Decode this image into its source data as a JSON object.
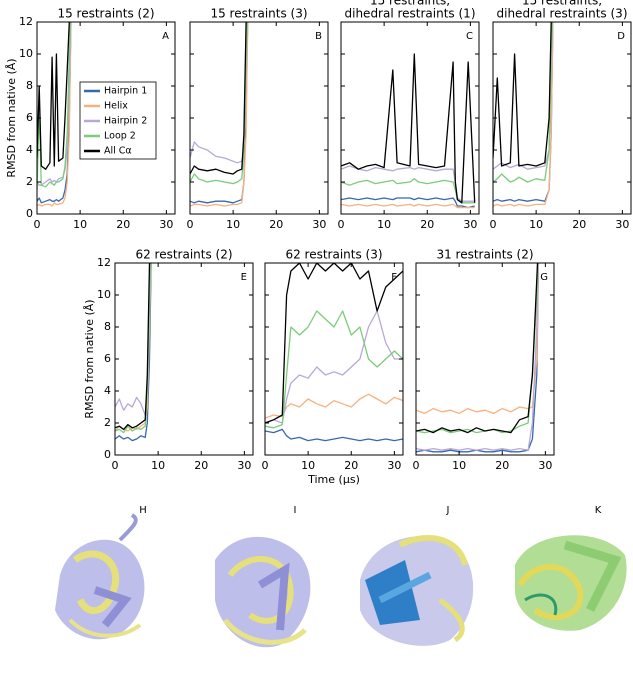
{
  "chart_data": [
    {
      "type": "line",
      "title": [
        "15 restraints (2)"
      ],
      "panel_label": "A",
      "ylabel": "RMSD from native (Å)",
      "x": [
        0,
        0.5,
        1,
        2,
        3,
        3.5,
        4,
        4.5,
        5,
        6,
        6.5,
        7,
        7.5,
        8
      ],
      "series": [
        {
          "name": "Hairpin 1",
          "color": "#3668b2",
          "values": [
            0.8,
            1.0,
            0.7,
            0.8,
            0.9,
            0.8,
            0.8,
            0.9,
            0.8,
            1.0,
            1.5,
            2.5,
            6,
            14
          ]
        },
        {
          "name": "Helix",
          "color": "#f7b17e",
          "values": [
            0.5,
            0.6,
            0.5,
            0.6,
            0.6,
            0.5,
            0.7,
            0.6,
            0.6,
            0.7,
            1.0,
            2.0,
            5,
            14
          ]
        },
        {
          "name": "Hairpin 2",
          "color": "#b7a8d8",
          "values": [
            2.0,
            1.8,
            1.8,
            2.0,
            2.2,
            2.0,
            2.1,
            2.0,
            2.2,
            2.3,
            2.8,
            4,
            8,
            14
          ]
        },
        {
          "name": "Loop 2",
          "color": "#7acb7a",
          "values": [
            1.5,
            6.5,
            1.8,
            1.7,
            2.0,
            1.9,
            1.8,
            2.0,
            2.0,
            2.2,
            3,
            5,
            10,
            14
          ]
        },
        {
          "name": "All Cα",
          "color": "#000000",
          "values": [
            3.5,
            8,
            3.0,
            2.8,
            3.2,
            9.8,
            3.0,
            10,
            3.3,
            3.5,
            6,
            9,
            12,
            14
          ]
        }
      ],
      "xlim": [
        0,
        32
      ],
      "xticks": [
        0,
        10,
        20,
        30
      ],
      "ylim": [
        0,
        12
      ],
      "yticks": [
        0,
        2,
        4,
        6,
        8,
        10,
        12
      ],
      "legend": "upper center"
    },
    {
      "type": "line",
      "title": [
        "15 restraints (3)"
      ],
      "panel_label": "B",
      "x": [
        0,
        1,
        2,
        4,
        6,
        8,
        10,
        11,
        12,
        12.5,
        13,
        13.5
      ],
      "series": [
        {
          "values": [
            0.8,
            0.7,
            0.8,
            0.7,
            0.8,
            0.8,
            0.7,
            0.8,
            0.9,
            2,
            6,
            14
          ]
        },
        {
          "values": [
            0.5,
            0.6,
            0.6,
            0.5,
            0.6,
            0.5,
            0.6,
            0.6,
            0.7,
            2,
            5,
            14
          ]
        },
        {
          "values": [
            3.5,
            4.5,
            4.2,
            4.0,
            3.6,
            3.5,
            3.3,
            3.2,
            3.3,
            4,
            9,
            14
          ]
        },
        {
          "values": [
            2.0,
            2.5,
            2.2,
            2.0,
            2.1,
            2.0,
            1.9,
            2.0,
            2.2,
            4,
            10,
            14
          ]
        },
        {
          "values": [
            2.5,
            3.0,
            2.8,
            2.7,
            2.8,
            2.6,
            2.5,
            2.7,
            2.8,
            5,
            12,
            14
          ]
        }
      ],
      "xlim": [
        0,
        32
      ],
      "xticks": [
        0,
        10,
        20,
        30
      ],
      "ylim": [
        0,
        12
      ],
      "yticks": [
        0,
        2,
        4,
        6,
        8,
        10,
        12
      ]
    },
    {
      "type": "line",
      "title": [
        "15 restraints,",
        "dihedral restraints (1)"
      ],
      "panel_label": "C",
      "x": [
        0,
        2,
        4,
        6,
        8,
        10,
        12,
        13,
        16,
        17,
        18,
        20,
        22,
        24,
        26,
        26.5,
        27,
        28,
        29.5,
        31
      ],
      "series": [
        {
          "values": [
            0.9,
            1.0,
            0.9,
            1.0,
            0.9,
            1.0,
            0.9,
            1.0,
            1.0,
            0.9,
            1.0,
            0.9,
            1.0,
            0.9,
            1.0,
            0.8,
            0.5,
            0.5,
            0.4,
            0.5
          ]
        },
        {
          "values": [
            0.6,
            0.5,
            0.6,
            0.5,
            0.6,
            0.5,
            0.6,
            0.5,
            0.6,
            0.5,
            0.6,
            0.5,
            0.6,
            0.5,
            0.6,
            0.5,
            0.4,
            0.4,
            0.4,
            0.4
          ]
        },
        {
          "values": [
            2.8,
            3.0,
            2.8,
            2.7,
            2.9,
            2.8,
            2.7,
            2.8,
            2.9,
            2.8,
            2.9,
            2.8,
            2.7,
            2.8,
            2.8,
            2.0,
            1.0,
            0.8,
            0.8,
            0.8
          ]
        },
        {
          "values": [
            2.0,
            1.8,
            2.0,
            2.1,
            1.9,
            2.0,
            2.1,
            1.9,
            2.0,
            2.2,
            2.0,
            1.9,
            2.0,
            2.1,
            2.0,
            1.5,
            0.9,
            0.7,
            0.7,
            0.7
          ]
        },
        {
          "values": [
            3.0,
            3.2,
            2.8,
            3.0,
            3.1,
            2.9,
            9.0,
            3.2,
            3.0,
            10.0,
            3.1,
            3.0,
            2.9,
            3.0,
            9.5,
            2.0,
            0.9,
            0.7,
            9.5,
            0.7
          ]
        }
      ],
      "xlim": [
        0,
        32
      ],
      "xticks": [
        0,
        10,
        20,
        30
      ],
      "ylim": [
        0,
        12
      ],
      "yticks": [
        0,
        2,
        4,
        6,
        8,
        10,
        12
      ]
    },
    {
      "type": "line",
      "title": [
        "15 restraints,",
        "dihedral restraints (3)"
      ],
      "panel_label": "D",
      "x": [
        0,
        1,
        2,
        4,
        5,
        6,
        8,
        10,
        12,
        13,
        13.5,
        14
      ],
      "series": [
        {
          "values": [
            0.8,
            0.9,
            0.8,
            0.9,
            0.8,
            0.9,
            0.8,
            0.9,
            0.8,
            1.5,
            5,
            14
          ]
        },
        {
          "values": [
            0.5,
            0.6,
            0.5,
            0.6,
            0.5,
            0.6,
            0.5,
            0.6,
            0.6,
            1.5,
            5,
            14
          ]
        },
        {
          "values": [
            2.8,
            3.0,
            3.2,
            2.9,
            3.0,
            3.1,
            2.8,
            2.9,
            3.0,
            4,
            9,
            14
          ]
        },
        {
          "values": [
            2.0,
            2.2,
            2.5,
            2.0,
            2.1,
            2.3,
            2.0,
            2.2,
            2.1,
            4,
            10,
            14
          ]
        },
        {
          "values": [
            3.5,
            8.5,
            3.0,
            3.2,
            10,
            3.0,
            3.1,
            3.0,
            3.2,
            6,
            12,
            14
          ]
        }
      ],
      "xlim": [
        0,
        32
      ],
      "xticks": [
        0,
        10,
        20,
        30
      ],
      "ylim": [
        0,
        12
      ],
      "yticks": [
        0,
        2,
        4,
        6,
        8,
        10,
        12
      ]
    },
    {
      "type": "line",
      "title": [
        "62 restraints (2)"
      ],
      "panel_label": "E",
      "ylabel": "RMSD from native (Å)",
      "x": [
        0,
        1,
        2,
        3,
        4,
        5,
        6,
        7,
        7.5,
        8,
        8.5
      ],
      "series": [
        {
          "values": [
            1.0,
            1.2,
            1.0,
            1.1,
            0.9,
            1.0,
            1.2,
            1.1,
            2,
            6,
            14
          ]
        },
        {
          "values": [
            1.5,
            1.8,
            1.6,
            1.5,
            1.7,
            1.6,
            1.8,
            2.0,
            3,
            8,
            14
          ]
        },
        {
          "values": [
            3.0,
            3.5,
            2.8,
            3.2,
            3.0,
            3.6,
            3.2,
            2.5,
            4,
            9,
            14
          ]
        },
        {
          "values": [
            1.5,
            1.6,
            1.4,
            1.8,
            1.5,
            1.7,
            1.6,
            1.8,
            4,
            10,
            14
          ]
        },
        {
          "values": [
            1.7,
            1.8,
            1.6,
            1.9,
            1.7,
            1.8,
            2.0,
            2.2,
            5,
            12,
            14
          ]
        }
      ],
      "xlim": [
        0,
        32
      ],
      "xticks": [
        0,
        10,
        20,
        30
      ],
      "ylim": [
        0,
        12
      ],
      "yticks": [
        0,
        2,
        4,
        6,
        8,
        10,
        12
      ]
    },
    {
      "type": "line",
      "title": [
        "62 restraints (3)"
      ],
      "panel_label": "F",
      "xlabel": "Time (μs)",
      "x": [
        0,
        2,
        4,
        5,
        6,
        8,
        10,
        12,
        14,
        16,
        18,
        20,
        22,
        24,
        26,
        28,
        30,
        32
      ],
      "series": [
        {
          "values": [
            1.5,
            1.4,
            1.6,
            1.2,
            1.0,
            1.1,
            0.9,
            1.0,
            0.9,
            1.0,
            1.1,
            1.0,
            0.9,
            1.0,
            0.9,
            1.0,
            0.9,
            1.0
          ]
        },
        {
          "values": [
            2.3,
            2.5,
            2.4,
            3.0,
            3.2,
            3.0,
            3.5,
            3.2,
            3.0,
            3.4,
            3.2,
            3.0,
            3.5,
            3.8,
            3.5,
            3.2,
            3.6,
            3.4
          ]
        },
        {
          "values": [
            2.0,
            2.2,
            2.0,
            3.5,
            4.5,
            5,
            4.8,
            5.5,
            5,
            5.2,
            5,
            5.5,
            6,
            8,
            9,
            7,
            6,
            6
          ]
        },
        {
          "values": [
            1.8,
            1.7,
            1.9,
            5,
            8,
            7.5,
            8,
            9,
            8.5,
            8,
            9,
            7.5,
            8,
            6,
            5.5,
            6,
            6.5,
            6
          ]
        },
        {
          "values": [
            2.0,
            2.2,
            2.5,
            10,
            11.5,
            12,
            11,
            12,
            11.5,
            12,
            11.5,
            12,
            11,
            11.5,
            9,
            10.5,
            11,
            11.5
          ]
        }
      ],
      "xlim": [
        0,
        32
      ],
      "xticks": [
        0,
        10,
        20,
        30
      ],
      "ylim": [
        0,
        12
      ],
      "yticks": [
        0,
        2,
        4,
        6,
        8,
        10,
        12
      ]
    },
    {
      "type": "line",
      "title": [
        "31 restraints (2)"
      ],
      "panel_label": "G",
      "x": [
        0,
        2,
        4,
        6,
        8,
        10,
        12,
        14,
        16,
        18,
        20,
        22,
        24,
        26,
        27,
        28,
        28.5
      ],
      "series": [
        {
          "values": [
            0.2,
            0.3,
            0.2,
            0.2,
            0.3,
            0.2,
            0.2,
            0.3,
            0.2,
            0.2,
            0.3,
            0.2,
            0.2,
            0.3,
            1,
            5,
            14
          ]
        },
        {
          "values": [
            2.8,
            2.6,
            2.9,
            2.7,
            2.8,
            2.6,
            2.9,
            2.7,
            2.8,
            2.6,
            2.9,
            2.7,
            3.0,
            2.9,
            3,
            6,
            14
          ]
        },
        {
          "values": [
            0.4,
            0.3,
            0.4,
            0.3,
            0.4,
            0.3,
            0.4,
            0.3,
            0.4,
            0.3,
            0.4,
            0.3,
            0.4,
            0.3,
            2,
            8,
            14
          ]
        },
        {
          "values": [
            1.5,
            1.4,
            1.5,
            1.6,
            1.4,
            1.5,
            1.6,
            1.4,
            1.5,
            1.6,
            1.4,
            1.5,
            1.8,
            2,
            5,
            10,
            14
          ]
        },
        {
          "values": [
            1.5,
            1.6,
            1.4,
            1.7,
            1.5,
            1.6,
            1.4,
            1.7,
            1.5,
            1.6,
            1.5,
            1.4,
            2.2,
            2.4,
            5,
            11,
            14
          ]
        }
      ],
      "xlim": [
        0,
        32
      ],
      "xticks": [
        0,
        10,
        20,
        30
      ],
      "ylim": [
        0,
        12
      ],
      "yticks": [
        0,
        2,
        4,
        6,
        8,
        10,
        12
      ]
    }
  ],
  "structures": {
    "labels": [
      "H",
      "I",
      "J",
      "K"
    ]
  }
}
